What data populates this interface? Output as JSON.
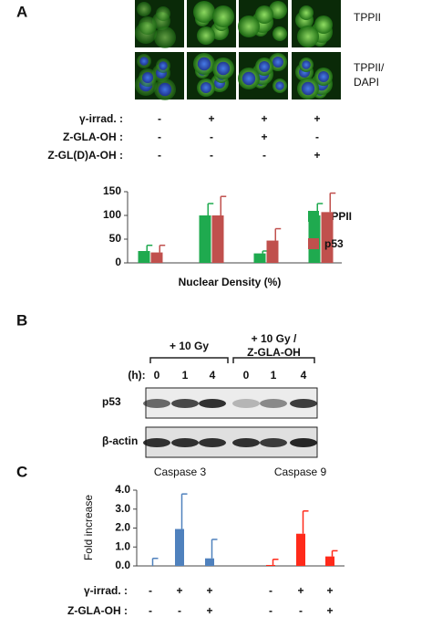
{
  "panel_a": {
    "label": "A",
    "image_rows": [
      [
        "TPPII"
      ],
      [
        "TPPII/",
        "DAPI"
      ]
    ],
    "treatments": [
      {
        "name": "γ-irrad. :",
        "signs": [
          "-",
          "+",
          "+",
          "+"
        ]
      },
      {
        "name": "Z-GLA-OH :",
        "signs": [
          "-",
          "-",
          "+",
          "-"
        ]
      },
      {
        "name": "Z-GL(D)A-OH :",
        "signs": [
          "-",
          "-",
          "-",
          "+"
        ]
      }
    ],
    "chart": {
      "type": "bar",
      "xlabel": "Nuclear Density (%)",
      "ylim": [
        0,
        150
      ],
      "yticks": [
        0,
        50,
        100,
        150
      ],
      "series": [
        {
          "name": "TPPII",
          "color": "#1faa4f",
          "values": [
            25,
            100,
            20,
            100
          ],
          "errors": [
            12,
            25,
            5,
            25
          ]
        },
        {
          "name": "p53",
          "color": "#c0504d",
          "values": [
            22,
            100,
            47,
            107
          ],
          "errors": [
            15,
            40,
            25,
            40
          ]
        }
      ]
    }
  },
  "panel_b": {
    "label": "B",
    "groups": [
      {
        "lines": [
          "+ 10 Gy"
        ]
      },
      {
        "lines": [
          "+ 10 Gy /",
          "Z-GLA-OH"
        ]
      }
    ],
    "time_label": "(h):",
    "times": [
      0,
      1,
      4,
      0,
      1,
      4
    ],
    "blots": [
      "p53",
      "β-actin"
    ]
  },
  "panel_c": {
    "label": "C",
    "chart": {
      "type": "bar",
      "ylabel": "Fold increase",
      "ylim": [
        0,
        4
      ],
      "yticks": [
        {
          "value": 0,
          "label": "0.0"
        },
        {
          "value": 1,
          "label": "1.0"
        },
        {
          "value": 2,
          "label": "2.0"
        },
        {
          "value": 3,
          "label": "3.0"
        },
        {
          "value": 4,
          "label": "4.0"
        }
      ],
      "groups": [
        {
          "title": "Caspase 3",
          "color": "#4f81bd",
          "values": [
            0,
            1.95,
            0.4
          ],
          "errors": [
            0.4,
            1.85,
            1.0
          ]
        },
        {
          "title": "Caspase 9",
          "color": "#ff2a1a",
          "values": [
            0.05,
            1.7,
            0.5
          ],
          "errors": [
            0.3,
            1.2,
            0.3
          ]
        }
      ]
    },
    "treatments": [
      {
        "name": "γ-irrad. :",
        "signs": [
          "-",
          "+",
          "+",
          "-",
          "+",
          "+"
        ]
      },
      {
        "name": "Z-GLA-OH :",
        "signs": [
          "-",
          "-",
          "+",
          "-",
          "-",
          "+"
        ]
      }
    ]
  }
}
